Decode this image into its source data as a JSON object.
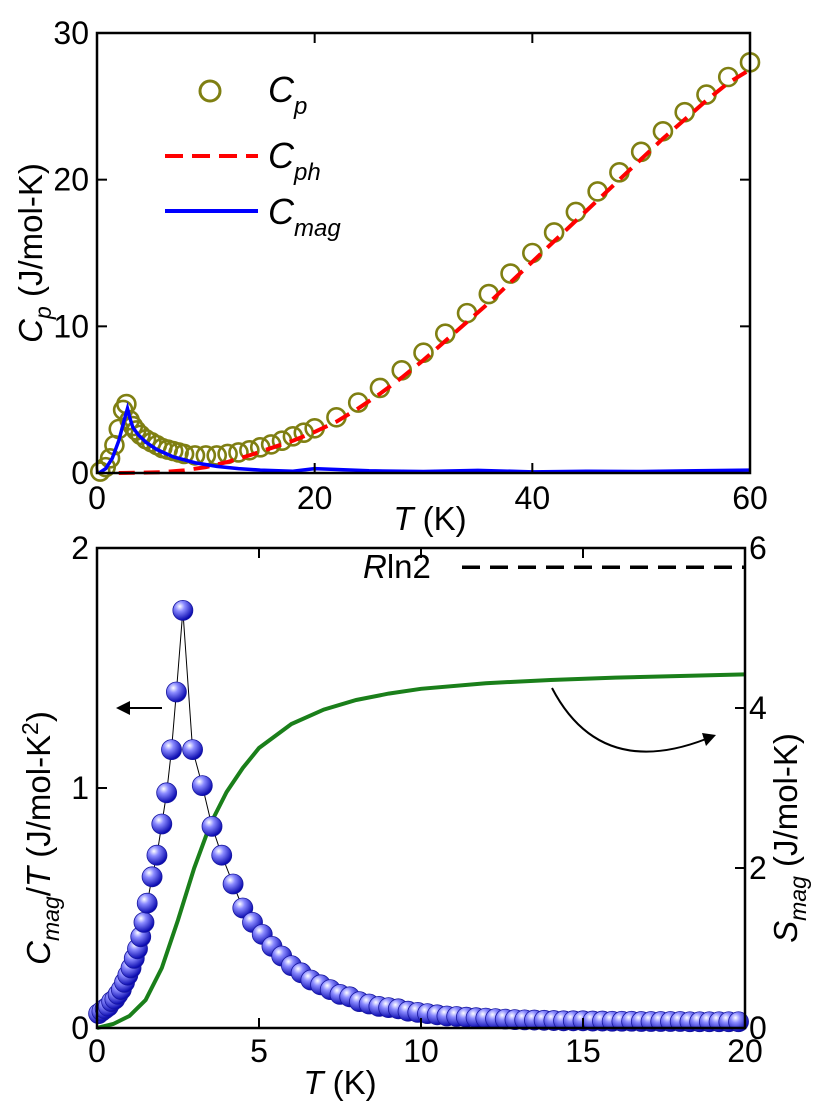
{
  "chart_data": [
    {
      "type": "line",
      "xlabel": "T (K)",
      "ylabel": "C_p (J/mol-K)",
      "xlim": [
        0,
        60
      ],
      "ylim": [
        0,
        30
      ],
      "xticks": [
        0,
        20,
        40,
        60
      ],
      "yticks": [
        0,
        10,
        20,
        30
      ],
      "legend": [
        "C_p",
        "C_ph",
        "C_mag"
      ],
      "legend_position": "top-left",
      "series": [
        {
          "name": "C_p",
          "style": "open-circles",
          "color": "#7f7f12",
          "x": [
            0.3,
            0.8,
            1.2,
            1.6,
            2.0,
            2.4,
            2.7,
            3.0,
            3.3,
            3.6,
            4.0,
            4.5,
            5,
            5.5,
            6,
            6.5,
            7,
            7.5,
            8,
            9,
            10,
            11,
            12,
            13,
            14,
            15,
            16,
            17,
            18,
            19,
            20,
            22,
            24,
            26,
            28,
            30,
            32,
            34,
            36,
            38,
            40,
            42,
            44,
            46,
            48,
            50,
            52,
            54,
            56,
            58,
            60
          ],
          "y": [
            0.1,
            0.4,
            1.0,
            1.9,
            3.0,
            4.3,
            4.7,
            3.6,
            3.2,
            2.9,
            2.6,
            2.3,
            2.1,
            1.9,
            1.7,
            1.6,
            1.5,
            1.4,
            1.3,
            1.2,
            1.2,
            1.2,
            1.3,
            1.4,
            1.55,
            1.75,
            1.95,
            2.2,
            2.5,
            2.75,
            3.05,
            3.8,
            4.8,
            5.8,
            7.0,
            8.2,
            9.5,
            10.9,
            12.2,
            13.6,
            15.0,
            16.4,
            17.8,
            19.2,
            20.5,
            21.9,
            23.3,
            24.6,
            25.8,
            27.0,
            28.0
          ]
        },
        {
          "name": "C_ph",
          "style": "dashed-line",
          "color": "#ff0000",
          "x": [
            2,
            4,
            6,
            8,
            10,
            12,
            14,
            16,
            18,
            20,
            22,
            24,
            26,
            28,
            30,
            32,
            34,
            36,
            38,
            40,
            42,
            44,
            46,
            48,
            50,
            52,
            54,
            56,
            58,
            60
          ],
          "y": [
            0.0,
            0.02,
            0.06,
            0.18,
            0.4,
            0.75,
            1.2,
            1.7,
            2.2,
            2.8,
            3.5,
            4.4,
            5.4,
            6.5,
            7.7,
            9.0,
            10.3,
            11.6,
            13.0,
            14.4,
            15.8,
            17.2,
            18.6,
            20.0,
            21.4,
            22.8,
            24.1,
            25.4,
            26.6,
            27.5
          ]
        },
        {
          "name": "C_mag",
          "style": "solid-line",
          "color": "#0000ff",
          "x": [
            0.2,
            0.8,
            1.4,
            2.0,
            2.5,
            2.8,
            3.0,
            3.3,
            3.8,
            4.5,
            5.5,
            7,
            9,
            11,
            13,
            15,
            18,
            20,
            25,
            30,
            35,
            40,
            45,
            50,
            55,
            60
          ],
          "y": [
            0.0,
            0.3,
            1.0,
            2.2,
            3.6,
            4.4,
            3.8,
            3.1,
            2.6,
            2.1,
            1.6,
            1.1,
            0.7,
            0.45,
            0.3,
            0.2,
            0.12,
            0.3,
            0.15,
            0.1,
            0.18,
            0.08,
            0.12,
            0.1,
            0.15,
            0.2
          ]
        }
      ]
    },
    {
      "type": "line",
      "xlabel": "T (K)",
      "ylabel": "C_mag/T (J/mol-K^2)",
      "ylabel_right": "S_mag (J/mol-K)",
      "xlim": [
        0,
        20
      ],
      "ylim": [
        0,
        2
      ],
      "ylim_right": [
        0,
        6
      ],
      "xticks": [
        0,
        5,
        10,
        15,
        20
      ],
      "yticks": [
        0,
        1,
        2
      ],
      "yticks_right": [
        0,
        2,
        4,
        6
      ],
      "annotations": [
        {
          "text": "Rln2",
          "value": 5.76,
          "axis": "right",
          "style": "dashed-line"
        }
      ],
      "series": [
        {
          "name": "C_mag/T",
          "axis": "left",
          "style": "filled-spheres",
          "color": "#2020e0",
          "x": [
            0.05,
            0.15,
            0.25,
            0.35,
            0.45,
            0.55,
            0.65,
            0.75,
            0.85,
            0.95,
            1.05,
            1.15,
            1.25,
            1.35,
            1.45,
            1.55,
            1.7,
            1.85,
            2.0,
            2.15,
            2.3,
            2.45,
            2.65,
            2.95,
            3.25,
            3.55,
            3.85,
            4.2,
            4.5,
            4.8,
            5.1,
            5.4,
            5.7,
            6.0,
            6.3,
            6.6,
            6.9,
            7.2,
            7.5,
            7.8,
            8.1,
            8.4,
            8.7,
            9.0,
            9.3,
            9.6,
            9.9,
            10.2,
            10.5,
            10.8,
            11.1,
            11.4,
            11.7,
            12.0,
            12.3,
            12.6,
            12.9,
            13.2,
            13.5,
            13.8,
            14.1,
            14.4,
            14.7,
            15.0,
            15.3,
            15.6,
            15.9,
            16.2,
            16.5,
            16.8,
            17.1,
            17.4,
            17.7,
            18.0,
            18.3,
            18.6,
            18.9,
            19.2,
            19.5,
            19.8
          ],
          "y": [
            0.06,
            0.07,
            0.08,
            0.09,
            0.11,
            0.12,
            0.14,
            0.16,
            0.19,
            0.22,
            0.25,
            0.29,
            0.33,
            0.38,
            0.44,
            0.52,
            0.63,
            0.72,
            0.85,
            0.98,
            1.16,
            1.4,
            1.74,
            1.16,
            1.01,
            0.84,
            0.72,
            0.6,
            0.5,
            0.44,
            0.39,
            0.34,
            0.3,
            0.26,
            0.23,
            0.2,
            0.18,
            0.16,
            0.14,
            0.13,
            0.11,
            0.1,
            0.09,
            0.085,
            0.08,
            0.07,
            0.065,
            0.06,
            0.055,
            0.05,
            0.048,
            0.045,
            0.043,
            0.041,
            0.039,
            0.037,
            0.035,
            0.034,
            0.033,
            0.032,
            0.031,
            0.03,
            0.03,
            0.03,
            0.029,
            0.029,
            0.028,
            0.028,
            0.028,
            0.027,
            0.027,
            0.027,
            0.027,
            0.027,
            0.026,
            0.026,
            0.026,
            0.026,
            0.026,
            0.026
          ]
        },
        {
          "name": "S_mag",
          "axis": "right",
          "style": "solid-line",
          "color": "#1a7f1a",
          "x": [
            0,
            0.5,
            1.0,
            1.5,
            2.0,
            2.5,
            3.0,
            3.5,
            4.0,
            4.5,
            5.0,
            6,
            7,
            8,
            9,
            10,
            12,
            14,
            16,
            18,
            20
          ],
          "y": [
            0.0,
            0.05,
            0.15,
            0.35,
            0.75,
            1.35,
            2.0,
            2.55,
            2.95,
            3.25,
            3.5,
            3.8,
            3.98,
            4.1,
            4.18,
            4.24,
            4.31,
            4.35,
            4.38,
            4.4,
            4.42
          ]
        }
      ]
    }
  ]
}
